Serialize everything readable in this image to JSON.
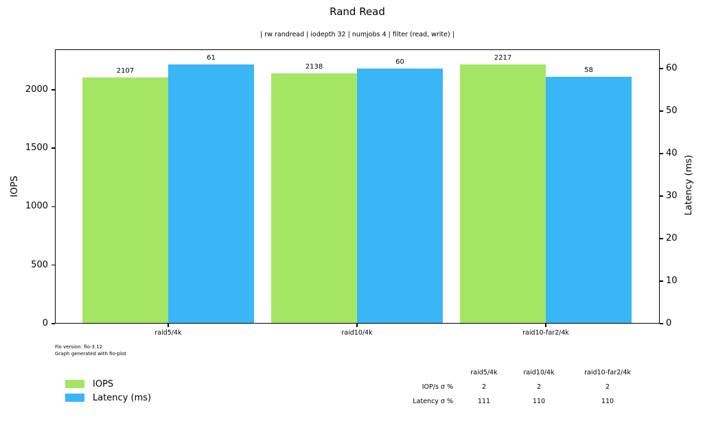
{
  "chart_data": {
    "type": "bar",
    "title": "Rand Read",
    "subtitle": "| rw randread | iodepth 32 | numjobs 4 | filter (read, write) |",
    "categories": [
      "raid5/4k",
      "raid10/4k",
      "raid10-far2/4k"
    ],
    "series": [
      {
        "name": "IOPS",
        "axis": "left",
        "color": "#a4e664",
        "values": [
          2107,
          2138,
          2217
        ]
      },
      {
        "name": "Latency (ms)",
        "axis": "right",
        "color": "#38b6f6",
        "values": [
          61,
          60,
          58
        ]
      }
    ],
    "left_axis": {
      "label": "IOPS",
      "ticks": [
        0,
        500,
        1000,
        1500,
        2000
      ],
      "ylim": [
        0,
        2345
      ]
    },
    "right_axis": {
      "label": "Latency (ms)",
      "ticks": [
        0,
        10,
        20,
        30,
        40,
        50,
        60
      ],
      "ylim": [
        0,
        64.5
      ]
    },
    "grid": false,
    "legend_position": "bottom-left",
    "bar_value_labels_shown": true
  },
  "legend": {
    "items": [
      {
        "label": "IOPS",
        "color": "#a4e664"
      },
      {
        "label": "Latency (ms)",
        "color": "#38b6f6"
      }
    ]
  },
  "footer": {
    "line1": "Fio version: fio-3.12",
    "line2": "Graph generated with fio-plot"
  },
  "stats_table": {
    "columns": [
      "raid5/4k",
      "raid10/4k",
      "raid10-far2/4k"
    ],
    "rows": [
      {
        "label": "IOP/s σ %",
        "values": [
          "2",
          "2",
          "2"
        ]
      },
      {
        "label": "Latency σ %",
        "values": [
          "111",
          "110",
          "110"
        ]
      }
    ]
  }
}
